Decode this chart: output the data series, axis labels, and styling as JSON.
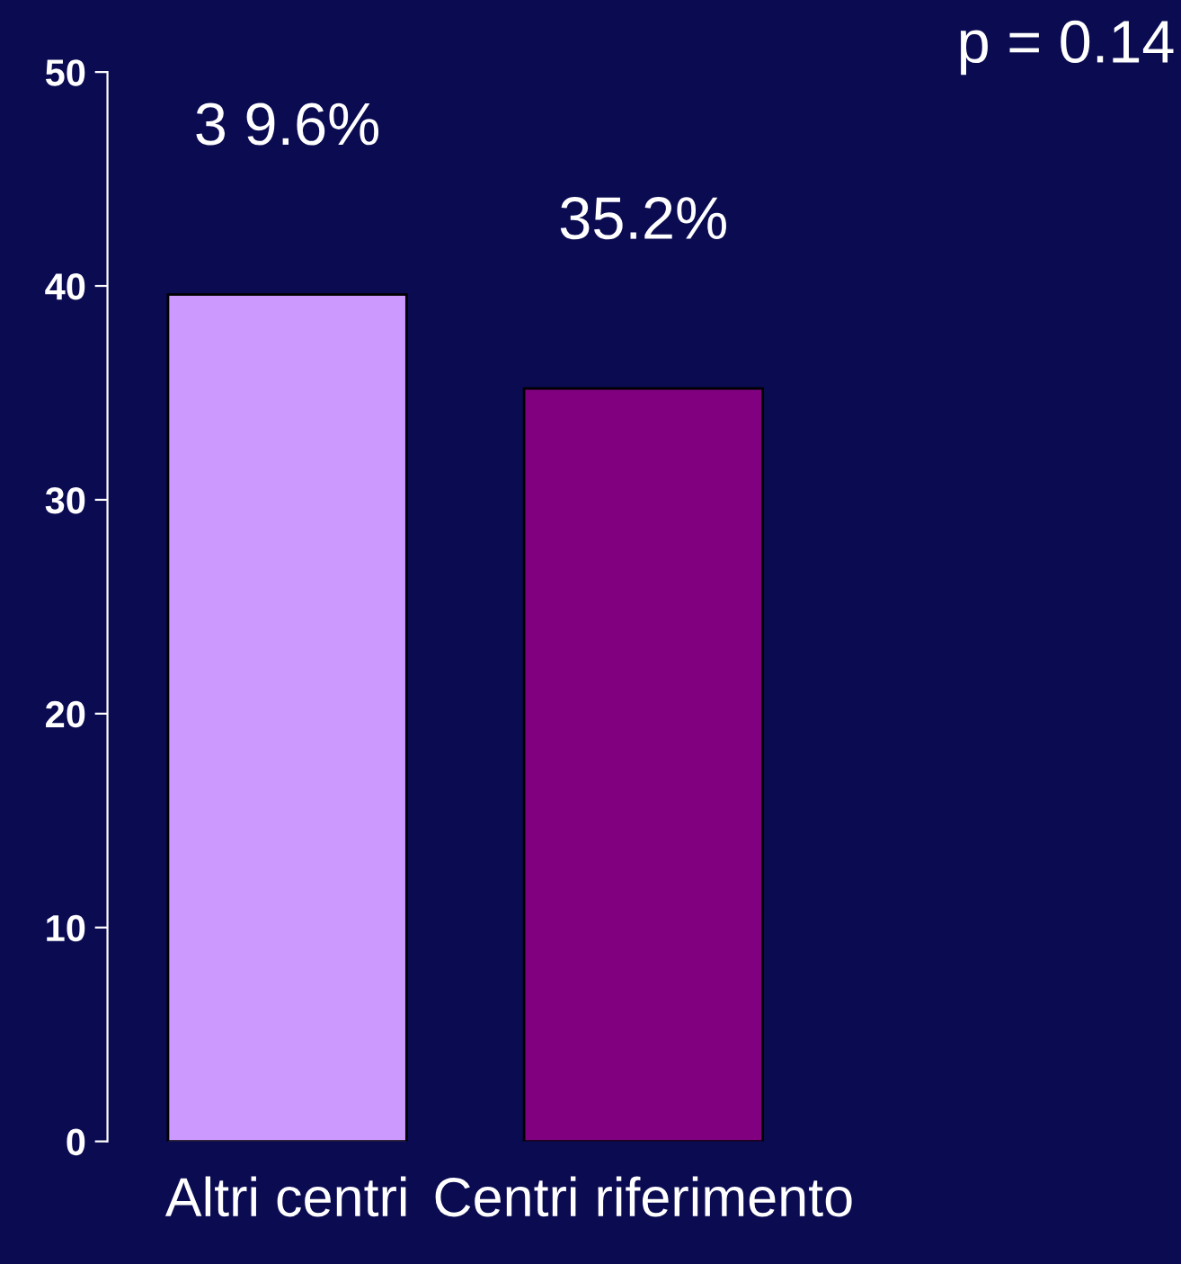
{
  "chart_data": {
    "type": "bar",
    "categories": [
      "Altri centri",
      "Centri riferimento"
    ],
    "values": [
      39.6,
      35.2
    ],
    "colors": [
      "#cc99ff",
      "#800080"
    ],
    "value_labels": [
      null,
      "35.2%"
    ],
    "ylim": [
      0,
      50
    ],
    "yticks": [
      0,
      10,
      20,
      30,
      40,
      50
    ],
    "grid": false,
    "legend": false,
    "annotations": [
      "p = 0.14",
      {
        "text": "3 9.6%",
        "x": "Altri centri",
        "y": 39.6
      }
    ]
  }
}
